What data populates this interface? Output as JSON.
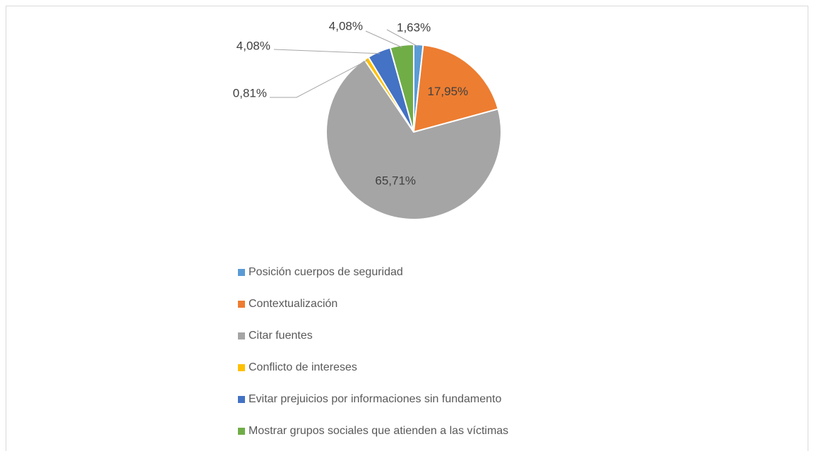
{
  "chart_data": {
    "type": "pie",
    "categories": [
      "Posición cuerpos de seguridad",
      "Contextualización",
      "Citar fuentes",
      "Conflicto de intereses",
      "Evitar prejuicios por informaciones sin fundamento",
      "Mostrar grupos sociales que atienden a las víctimas"
    ],
    "values": [
      1.63,
      17.95,
      65.71,
      0.81,
      4.08,
      4.08
    ],
    "value_labels": [
      "1,63%",
      "17,95%",
      "65,71%",
      "0,81%",
      "4,08%",
      "4,08%"
    ],
    "colors": [
      "#5b9bd5",
      "#ed7d31",
      "#a5a5a5",
      "#ffc000",
      "#4472c4",
      "#70ad47"
    ]
  }
}
